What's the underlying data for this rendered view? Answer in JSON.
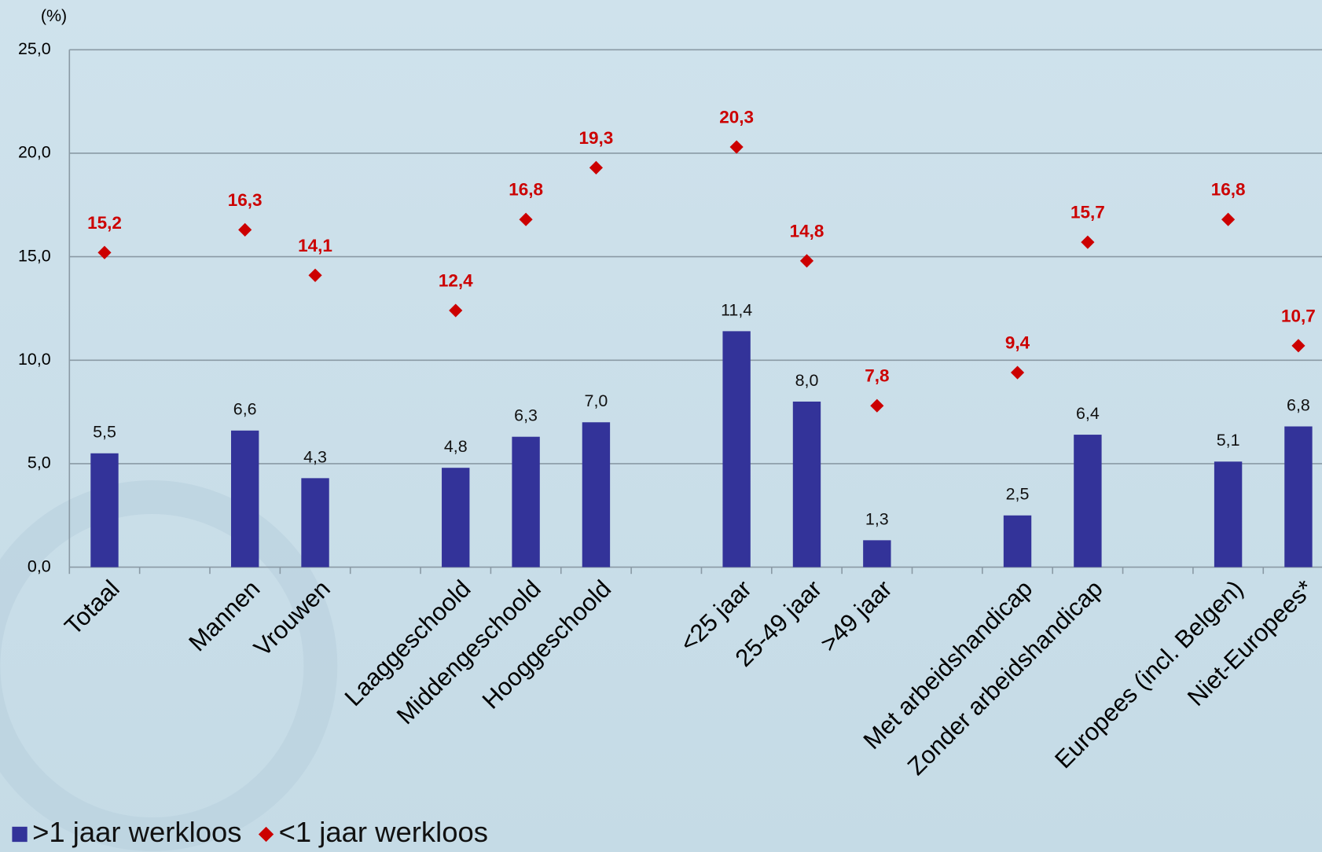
{
  "chart_data": {
    "type": "bar+scatter",
    "y_axis_label": "(%)",
    "categories": [
      "Totaal",
      null,
      "Mannen",
      "Vrouwen",
      null,
      "Laaggeschoold",
      "Middengeschoold",
      "Hooggeschoold",
      null,
      "<25 jaar",
      "25-49 jaar",
      ">49 jaar",
      null,
      "Met arbeidshandicap",
      "Zonder arbeidshandicap",
      null,
      "Europees (incl. Belgen)",
      "Niet-Europees*"
    ],
    "series": [
      {
        "name": ">1 jaar werkloos",
        "type": "bar",
        "color": "#333399",
        "values": [
          5.5,
          null,
          6.6,
          4.3,
          null,
          4.8,
          6.3,
          7.0,
          null,
          11.4,
          8.0,
          1.3,
          null,
          2.5,
          6.4,
          null,
          5.1,
          6.8
        ],
        "value_labels": [
          "5,5",
          null,
          "6,6",
          "4,3",
          null,
          "4,8",
          "6,3",
          "7,0",
          null,
          "11,4",
          "8,0",
          "1,3",
          null,
          "2,5",
          "6,4",
          null,
          "5,1",
          "6,8"
        ]
      },
      {
        "name": "<1 jaar werkloos",
        "type": "scatter",
        "color": "#cc0000",
        "values": [
          15.2,
          null,
          16.3,
          14.1,
          null,
          12.4,
          16.8,
          19.3,
          null,
          20.3,
          14.8,
          7.8,
          null,
          9.4,
          15.7,
          null,
          16.8,
          10.7
        ],
        "value_labels": [
          "15,2",
          null,
          "16,3",
          "14,1",
          null,
          "12,4",
          "16,8",
          "19,3",
          null,
          "20,3",
          "14,8",
          "7,8",
          null,
          "9,4",
          "15,7",
          null,
          "16,8",
          "10,7"
        ]
      }
    ],
    "ylim": [
      0,
      25
    ],
    "yticks": [
      {
        "value": 0,
        "label": "0,0"
      },
      {
        "value": 5,
        "label": "5,0"
      },
      {
        "value": 10,
        "label": "10,0"
      },
      {
        "value": 15,
        "label": "15,0"
      },
      {
        "value": 20,
        "label": "20,0"
      },
      {
        "value": 25,
        "label": "25,0"
      }
    ],
    "grid": true,
    "legend": "bottom-left"
  }
}
